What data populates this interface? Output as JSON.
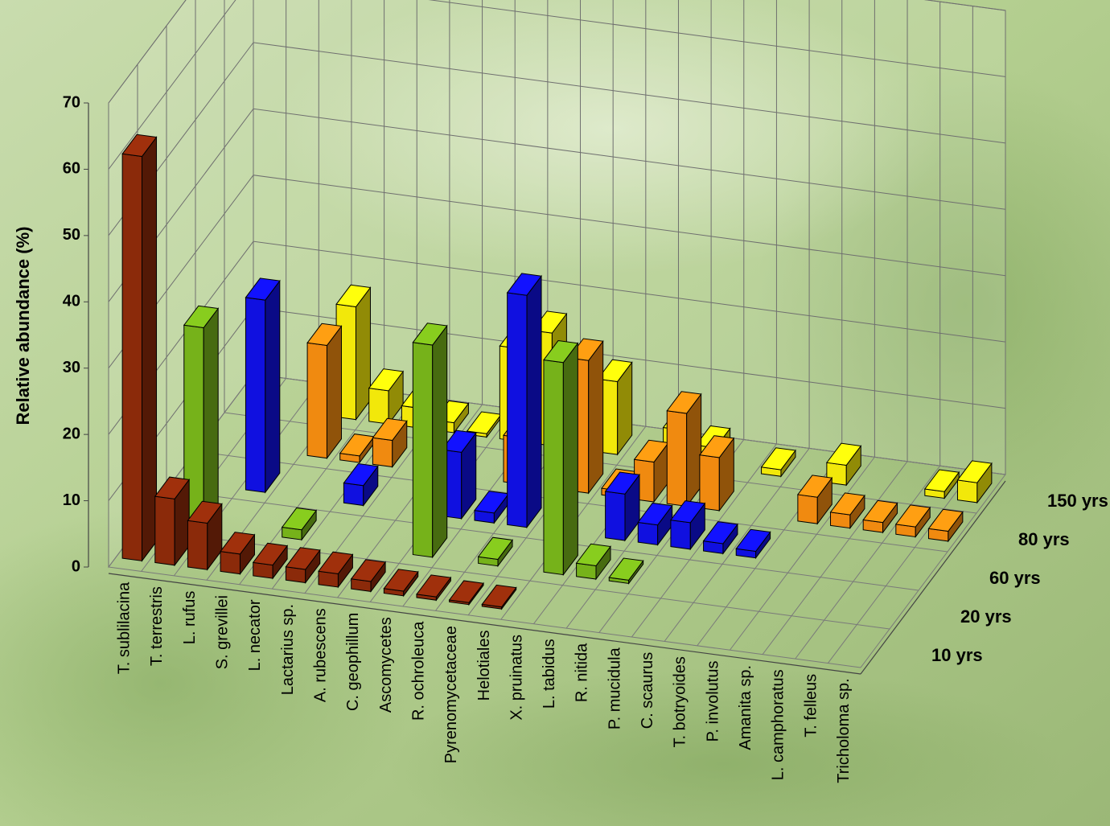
{
  "chart_data": {
    "type": "bar3d",
    "y_label": "Relative abundance (%)",
    "categories": [
      "T. sublilacina",
      "T. terrestris",
      "L. rufus",
      "S. grevillei",
      "L. necator",
      "Lactarius sp.",
      "A. rubescens",
      "C. geophillum",
      "Ascomycetes",
      "R. ochroleuca",
      "Pyrenomycetaceae",
      "Helotiales",
      "X. pruinatus",
      "L. tabidus",
      "R. nitida",
      "P. mucidula",
      "C. scaurus",
      "T. botryoides",
      "P. involutus",
      "Amanita sp.",
      "L. camphoratus",
      "T. felleus",
      "Tricholoma sp."
    ],
    "series": [
      {
        "name": "10 yrs",
        "color": "#8b2a0a",
        "values": [
          61,
          10,
          7,
          3,
          2,
          2,
          2,
          1.5,
          0.7,
          0.5,
          0.3,
          0.3,
          null,
          null,
          null,
          null,
          null,
          null,
          null,
          null,
          null,
          null,
          null
        ]
      },
      {
        "name": "20 yrs",
        "color": "#76b21a",
        "values": [
          null,
          30,
          null,
          null,
          1.5,
          null,
          null,
          null,
          32,
          null,
          1,
          null,
          32,
          2,
          0.5,
          null,
          null,
          null,
          null,
          null,
          null,
          null,
          null
        ]
      },
      {
        "name": "60 yrs",
        "color": "#1010e0",
        "values": [
          null,
          null,
          29,
          null,
          null,
          3,
          null,
          null,
          10,
          1.5,
          35,
          null,
          null,
          7,
          3,
          4,
          1.5,
          1,
          null,
          null,
          null,
          null,
          null
        ]
      },
      {
        "name": "80 yrs",
        "color": "#f08a10",
        "values": [
          null,
          null,
          null,
          17,
          1,
          4,
          null,
          null,
          null,
          7,
          null,
          20,
          1,
          6,
          14,
          8,
          null,
          null,
          4,
          2,
          1.5,
          1.5,
          1.5
        ]
      },
      {
        "name": "150 yrs",
        "color": "#f2e80a",
        "values": [
          null,
          null,
          null,
          17,
          5,
          3,
          1.5,
          0.5,
          14,
          17,
          null,
          11,
          null,
          5,
          3,
          null,
          1,
          null,
          3,
          null,
          null,
          1,
          3
        ]
      }
    ],
    "ylim": [
      0,
      70
    ],
    "yticks": [
      0,
      10,
      20,
      30,
      40,
      50,
      60,
      70
    ],
    "grid": true
  }
}
